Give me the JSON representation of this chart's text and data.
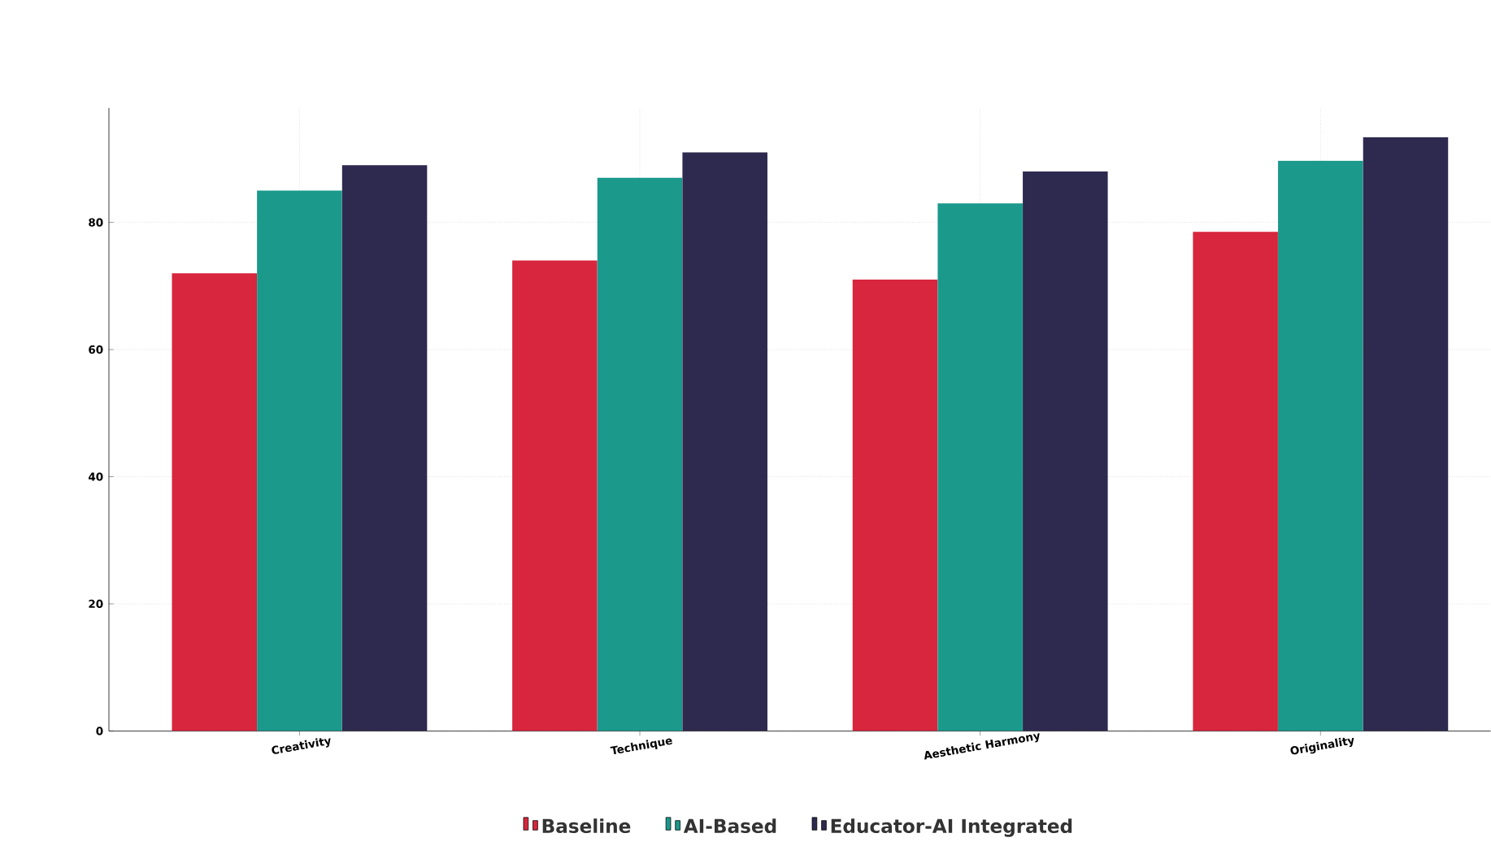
{
  "chart_data": {
    "type": "bar",
    "categories": [
      "Creativity",
      "Technique",
      "Aesthetic Harmony",
      "Originality"
    ],
    "series": [
      {
        "name": "Baseline",
        "color": "#d7263d",
        "values": [
          72,
          74,
          71,
          78.5
        ]
      },
      {
        "name": "AI-Based",
        "color": "#1b998b",
        "values": [
          85,
          87,
          83,
          89.7
        ]
      },
      {
        "name": "Educator-AI Integrated",
        "color": "#2e294e",
        "values": [
          89,
          91,
          88,
          93.4
        ]
      }
    ],
    "ylim": [
      0,
      98
    ],
    "yticks": [
      0,
      20,
      40,
      60,
      80
    ],
    "grid": true,
    "legend": "bottom"
  }
}
